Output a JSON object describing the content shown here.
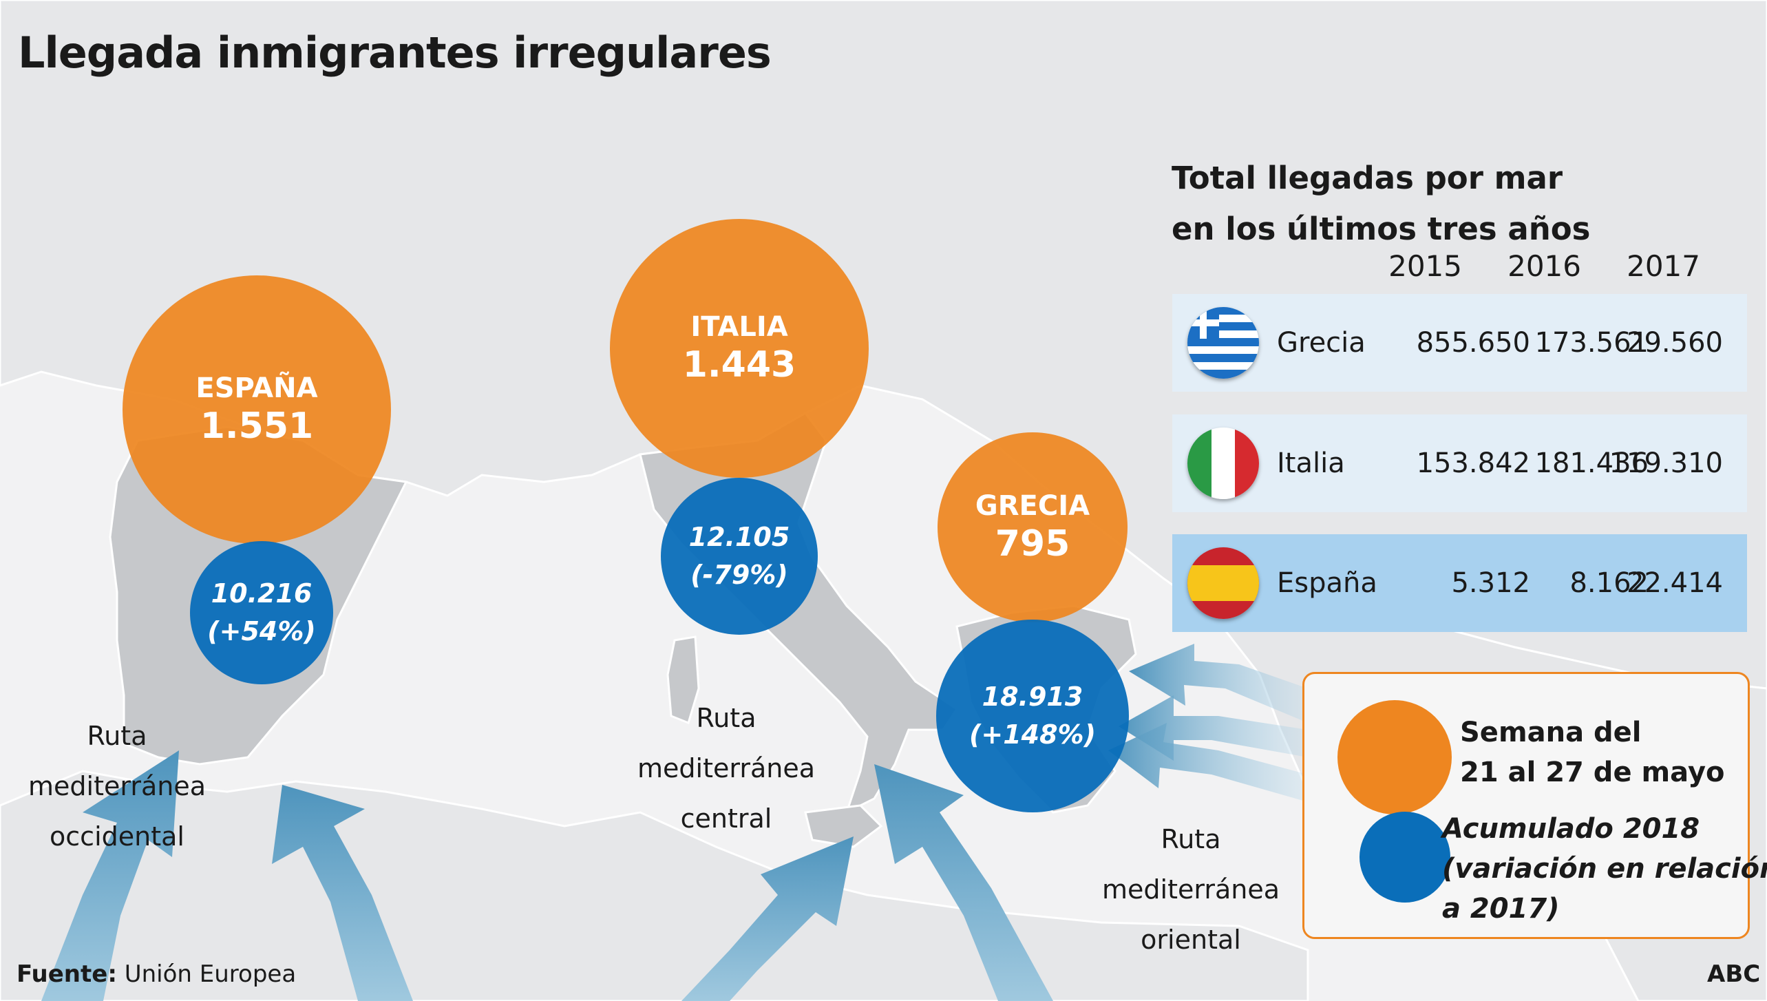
{
  "title": "Llegada inmigrantes irregulares",
  "bubbles": {
    "spain": {
      "country": "ESPAÑA",
      "weekly": "1.551",
      "accumulated": "10.216",
      "change": "(+54%)"
    },
    "italy": {
      "country": "ITALIA",
      "weekly": "1.443",
      "accumulated": "12.105",
      "change": "(-79%)"
    },
    "greece": {
      "country": "GRECIA",
      "weekly": "795",
      "accumulated": "18.913",
      "change": "(+148%)"
    }
  },
  "routes": {
    "western": [
      "Ruta",
      "mediterránea",
      "occidental"
    ],
    "central": [
      "Ruta",
      "mediterránea",
      "central"
    ],
    "eastern": [
      "Ruta",
      "mediterránea",
      "oriental"
    ]
  },
  "sea_arrivals": {
    "title_lines": [
      "Total llegadas por mar",
      "en los últimos tres años"
    ],
    "years": [
      "2015",
      "2016",
      "2017"
    ],
    "rows": [
      {
        "country": "Grecia",
        "values": [
          "855.650",
          "173.561",
          "29.560"
        ],
        "flag_icon": "greece-flag-icon"
      },
      {
        "country": "Italia",
        "values": [
          "153.842",
          "181.436",
          "119.310"
        ],
        "flag_icon": "italy-flag-icon"
      },
      {
        "country": "España",
        "values": [
          "5.312",
          "8.162",
          "22.414"
        ],
        "flag_icon": "spain-flag-icon"
      }
    ]
  },
  "legend": {
    "weekly_label": [
      "Semana del",
      "21 al 27 de mayo"
    ],
    "accumulated_label": [
      "Acumulado 2018",
      "(variación en relación",
      "a 2017)"
    ]
  },
  "footer": {
    "source_label": "Fuente:",
    "source_value": "Unión Europea",
    "credit": "ABC"
  },
  "colors": {
    "weekly": "#ee8620",
    "accumulated": "#0a6eb9",
    "highlight_country": "#c6c8cb",
    "other_land": "#e6e7e9",
    "sea": "#f2f2f3",
    "row_light": "#e3eef7",
    "row_strong": "#a8d1ef"
  }
}
